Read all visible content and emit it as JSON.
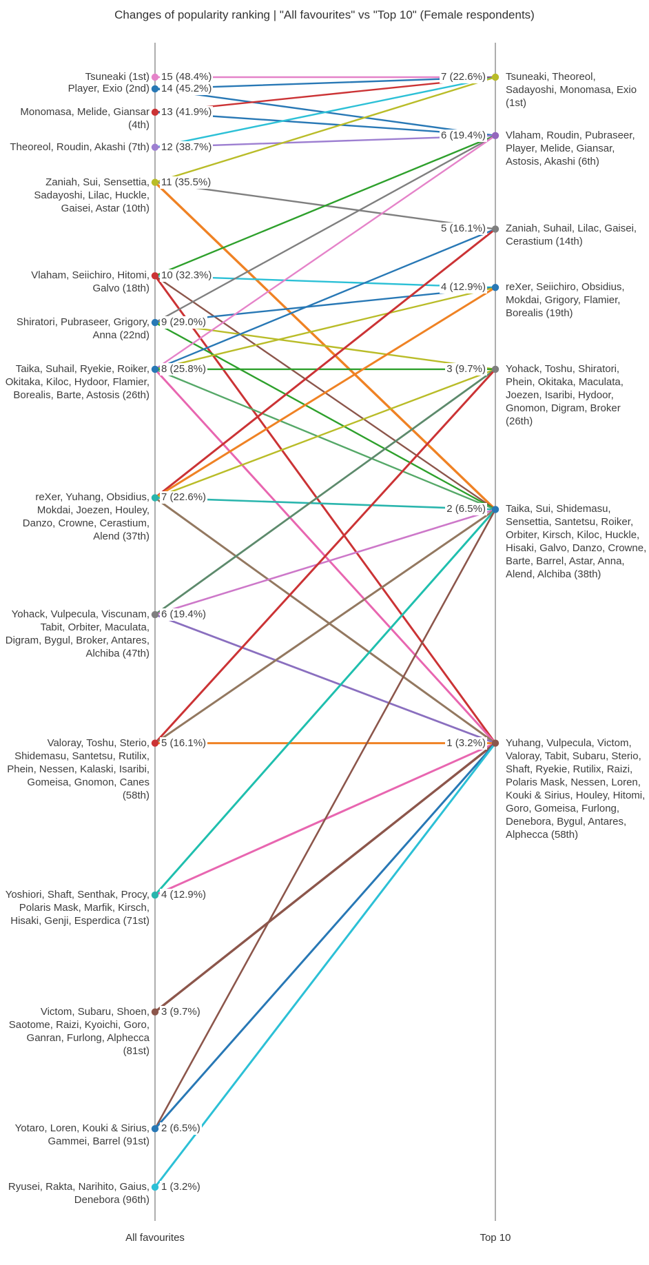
{
  "chart_data": {
    "type": "line",
    "subtype": "slopegraph",
    "title": "Changes of popularity ranking | \"All favourites\" vs \"Top 10\" (Female respondents)",
    "axis_left_label": "All favourites",
    "axis_right_label": "Top 10",
    "rank_scale": {
      "min_place": 1,
      "max_place": 96
    },
    "left_nodes": [
      {
        "place": 1,
        "value": 15,
        "value_label": "15 (48.4%)",
        "names": "Tsuneaki (1st)",
        "color": "#e583c9"
      },
      {
        "place": 2,
        "value": 14,
        "value_label": "14 (45.2%)",
        "names": "Player, Exio (2nd)",
        "color": "#2878b5"
      },
      {
        "place": 4,
        "value": 13,
        "value_label": "13 (41.9%)",
        "names": "Monomasa, Melide, Giansar (4th)",
        "color": "#cb3335"
      },
      {
        "place": 7,
        "value": 12,
        "value_label": "12 (38.7%)",
        "names": "Theoreol, Roudin, Akashi (7th)",
        "color": "#9d7fd1"
      },
      {
        "place": 10,
        "value": 11,
        "value_label": "11 (35.5%)",
        "names": "Zaniah, Sui, Sensettia, Sadayoshi, Lilac, Huckle, Gaisei, Astar (10th)",
        "color": "#b9bc28"
      },
      {
        "place": 18,
        "value": 10,
        "value_label": "10 (32.3%)",
        "names": "Vlaham, Seiichiro, Hitomi, Galvo (18th)",
        "color": "#cb3335"
      },
      {
        "place": 22,
        "value": 9,
        "value_label": "9 (29.0%)",
        "names": "Shiratori, Pubraseer, Grigory, Anna (22nd)",
        "color": "#2878b5"
      },
      {
        "place": 26,
        "value": 8,
        "value_label": "8 (25.8%)",
        "names": "Taika, Suhail, Ryekie, Roiker, Okitaka, Kiloc, Hydoor, Flamier, Borealis, Barte, Astosis (26th)",
        "color": "#2878b5"
      },
      {
        "place": 37,
        "value": 7,
        "value_label": "7 (22.6%)",
        "names": "reXer, Yuhang, Obsidius, Mokdai, Joezen, Houley, Danzo, Crowne, Cerastium, Alend (37th)",
        "color": "#2ab5ad"
      },
      {
        "place": 47,
        "value": 6,
        "value_label": "6 (19.4%)",
        "names": "Yohack, Vulpecula, Viscunam, Tabit, Orbiter, Maculata, Digram, Bygul, Broker, Antares, Alchiba (47th)",
        "color": "#7f7f7f"
      },
      {
        "place": 58,
        "value": 5,
        "value_label": "5 (16.1%)",
        "names": "Valoray, Toshu, Sterio, Shidemasu, Santetsu, Rutilix, Phein, Nessen, Kalaski, Isaribi, Gomeisa, Gnomon, Canes (58th)",
        "color": "#cb3335"
      },
      {
        "place": 71,
        "value": 4,
        "value_label": "4 (12.9%)",
        "names": "Yoshiori, Shaft, Senthak, Procy, Polaris Mask, Marfik, Kirsch, Hisaki, Genji, Esperdica (71st)",
        "color": "#2ab5ad"
      },
      {
        "place": 81,
        "value": 3,
        "value_label": "3 (9.7%)",
        "names": "Victom, Subaru, Shoen, Saotome, Raizi, Kyoichi, Goro, Ganran, Furlong, Alphecca (81st)",
        "color": "#8c564b"
      },
      {
        "place": 91,
        "value": 2,
        "value_label": "2 (6.5%)",
        "names": "Yotaro, Loren, Kouki & Sirius, Gammei, Barrel (91st)",
        "color": "#2878b5"
      },
      {
        "place": 96,
        "value": 1,
        "value_label": "1 (3.2%)",
        "names": "Ryusei, Rakta, Narihito, Gaius, Denebora (96th)",
        "color": "#2cc0d6"
      }
    ],
    "right_nodes": [
      {
        "place": 1,
        "value": 7,
        "value_label": "7 (22.6%)",
        "names": "Tsuneaki, Theoreol, Sadayoshi, Monomasa, Exio (1st)",
        "color": "#b9bc28"
      },
      {
        "place": 6,
        "value": 6,
        "value_label": "6 (19.4%)",
        "names": "Vlaham, Roudin, Pubraseer, Player, Melide, Giansar, Astosis, Akashi (6th)",
        "color": "#9467bd"
      },
      {
        "place": 14,
        "value": 5,
        "value_label": "5 (16.1%)",
        "names": "Zaniah, Suhail, Lilac, Gaisei, Cerastium (14th)",
        "color": "#7f7f7f"
      },
      {
        "place": 19,
        "value": 4,
        "value_label": "4 (12.9%)",
        "names": "reXer, Seiichiro, Obsidius, Mokdai, Grigory, Flamier, Borealis (19th)",
        "color": "#2878b5"
      },
      {
        "place": 26,
        "value": 3,
        "value_label": "3 (9.7%)",
        "names": "Yohack, Toshu, Shiratori, Phein, Okitaka, Maculata, Joezen, Isaribi, Hydoor, Gnomon, Digram, Broker (26th)",
        "color": "#7f7f7f"
      },
      {
        "place": 38,
        "value": 2,
        "value_label": "2 (6.5%)",
        "names": "Taika, Sui, Shidemasu, Sensettia, Santetsu, Roiker, Orbiter, Kirsch, Kiloc, Huckle, Hisaki, Galvo, Danzo, Crowne, Barte, Barrel, Astar, Anna, Alend, Alchiba (38th)",
        "color": "#2878b5"
      },
      {
        "place": 58,
        "value": 1,
        "value_label": "1 (3.2%)",
        "names": "Yuhang, Vulpecula, Victom, Valoray, Tabit, Subaru, Sterio, Shaft, Ryekie, Rutilix, Raizi, Polaris Mask, Nessen, Loren, Kouki & Sirius, Houley, Hitomi, Goro, Gomeisa, Furlong, Denebora, Bygul, Antares, Alphecca (58th)",
        "color": "#8c564b"
      }
    ],
    "links": [
      {
        "from": 1,
        "to": 1,
        "color": "#e583c9",
        "w": 2.4
      },
      {
        "from": 2,
        "to": 1,
        "color": "#2878b5",
        "w": 2.4
      },
      {
        "from": 2,
        "to": 6,
        "color": "#2878b5",
        "w": 2.4
      },
      {
        "from": 4,
        "to": 1,
        "color": "#cb3335",
        "w": 2.4
      },
      {
        "from": 4,
        "to": 6,
        "color": "#2878b5",
        "w": 2.4
      },
      {
        "from": 7,
        "to": 1,
        "color": "#2cc0d6",
        "w": 2.4
      },
      {
        "from": 7,
        "to": 6,
        "color": "#9d7fd1",
        "w": 2.4
      },
      {
        "from": 10,
        "to": 1,
        "color": "#b9bc28",
        "w": 2.4
      },
      {
        "from": 10,
        "to": 14,
        "color": "#7f7f7f",
        "w": 2.4
      },
      {
        "from": 10,
        "to": 38,
        "color": "#ef8224",
        "w": 3.4
      },
      {
        "from": 18,
        "to": 6,
        "color": "#2ea02c",
        "w": 2.4
      },
      {
        "from": 18,
        "to": 19,
        "color": "#2cc0d6",
        "w": 2.4
      },
      {
        "from": 18,
        "to": 38,
        "color": "#8c564b",
        "w": 2.4
      },
      {
        "from": 18,
        "to": 58,
        "color": "#cb3335",
        "w": 3.0
      },
      {
        "from": 22,
        "to": 6,
        "color": "#7f7f7f",
        "w": 2.4
      },
      {
        "from": 22,
        "to": 19,
        "color": "#2878b5",
        "w": 2.4
      },
      {
        "from": 22,
        "to": 26,
        "color": "#b9bc28",
        "w": 2.4
      },
      {
        "from": 22,
        "to": 38,
        "color": "#2ea02c",
        "w": 2.4
      },
      {
        "from": 26,
        "to": 6,
        "color": "#e583c9",
        "w": 2.4
      },
      {
        "from": 26,
        "to": 14,
        "color": "#2878b5",
        "w": 2.4
      },
      {
        "from": 26,
        "to": 19,
        "color": "#b9bc28",
        "w": 2.4
      },
      {
        "from": 26,
        "to": 26,
        "color": "#2ea02c",
        "w": 2.4
      },
      {
        "from": 26,
        "to": 38,
        "color": "#55a868",
        "w": 2.4
      },
      {
        "from": 26,
        "to": 58,
        "color": "#e866b0",
        "w": 3.0
      },
      {
        "from": 37,
        "to": 14,
        "color": "#cb3335",
        "w": 3.0
      },
      {
        "from": 37,
        "to": 19,
        "color": "#ef8224",
        "w": 3.0
      },
      {
        "from": 37,
        "to": 26,
        "color": "#b9bc28",
        "w": 2.4
      },
      {
        "from": 37,
        "to": 38,
        "color": "#2ab5ad",
        "w": 2.6
      },
      {
        "from": 37,
        "to": 58,
        "color": "#937860",
        "w": 3.0
      },
      {
        "from": 47,
        "to": 26,
        "color": "#5d8a6c",
        "w": 2.8
      },
      {
        "from": 47,
        "to": 38,
        "color": "#cd78c9",
        "w": 2.6
      },
      {
        "from": 47,
        "to": 58,
        "color": "#8a6fbf",
        "w": 2.8
      },
      {
        "from": 58,
        "to": 26,
        "color": "#cb3335",
        "w": 3.0
      },
      {
        "from": 58,
        "to": 38,
        "color": "#937860",
        "w": 3.0
      },
      {
        "from": 58,
        "to": 58,
        "color": "#ef8224",
        "w": 3.0
      },
      {
        "from": 71,
        "to": 38,
        "color": "#1fbfae",
        "w": 3.0
      },
      {
        "from": 71,
        "to": 58,
        "color": "#e866b0",
        "w": 3.0
      },
      {
        "from": 81,
        "to": 58,
        "color": "#8c564b",
        "w": 3.4
      },
      {
        "from": 91,
        "to": 38,
        "color": "#8c564b",
        "w": 2.6
      },
      {
        "from": 91,
        "to": 58,
        "color": "#2878b5",
        "w": 3.0
      },
      {
        "from": 96,
        "to": 58,
        "color": "#2cc0d6",
        "w": 3.0
      }
    ],
    "axis_color": "#777777"
  }
}
